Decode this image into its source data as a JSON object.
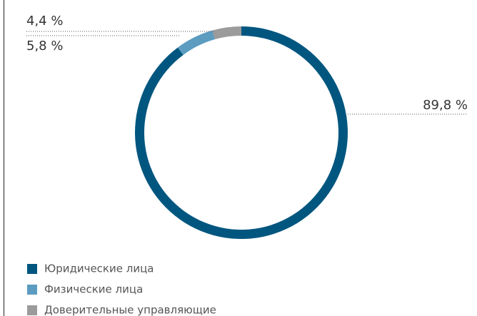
{
  "chart_data": {
    "type": "pie",
    "categories": [
      "Юридические лица",
      "Физические лица",
      "Доверительные управляющие"
    ],
    "values": [
      89.8,
      5.8,
      4.4
    ],
    "value_labels": [
      "89,8 %",
      "5,8 %",
      "4,4 %"
    ],
    "colors": [
      "#00567f",
      "#5b9cc0",
      "#9b9b9b"
    ],
    "donut": true
  }
}
